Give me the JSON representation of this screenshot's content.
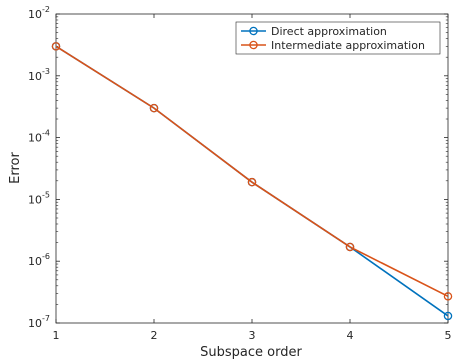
{
  "chart_data": {
    "type": "line",
    "xlabel": "Subspace order",
    "ylabel": "Error",
    "yscale": "log",
    "xlim": [
      1,
      5
    ],
    "ylim": [
      1e-07,
      0.01
    ],
    "grid": false,
    "legend_position": "top-right",
    "x_ticks": [
      "1",
      "2",
      "3",
      "4",
      "5"
    ],
    "y_ticks": [
      {
        "base": "10",
        "exp": "-7",
        "value": 1e-07
      },
      {
        "base": "10",
        "exp": "-6",
        "value": 1e-06
      },
      {
        "base": "10",
        "exp": "-5",
        "value": 1e-05
      },
      {
        "base": "10",
        "exp": "-4",
        "value": 0.0001
      },
      {
        "base": "10",
        "exp": "-3",
        "value": 0.001
      },
      {
        "base": "10",
        "exp": "-2",
        "value": 0.01
      }
    ],
    "x": [
      1,
      2,
      3,
      4,
      5
    ],
    "series": [
      {
        "name": "Direct approximation",
        "color": "#0072BD",
        "marker": "circle",
        "values": [
          0.003,
          0.0003,
          1.9e-05,
          1.7e-06,
          1.3e-07
        ]
      },
      {
        "name": "Intermediate approximation",
        "color": "#D95319",
        "marker": "circle",
        "values": [
          0.003,
          0.0003,
          1.9e-05,
          1.7e-06,
          2.7e-07
        ]
      }
    ]
  }
}
